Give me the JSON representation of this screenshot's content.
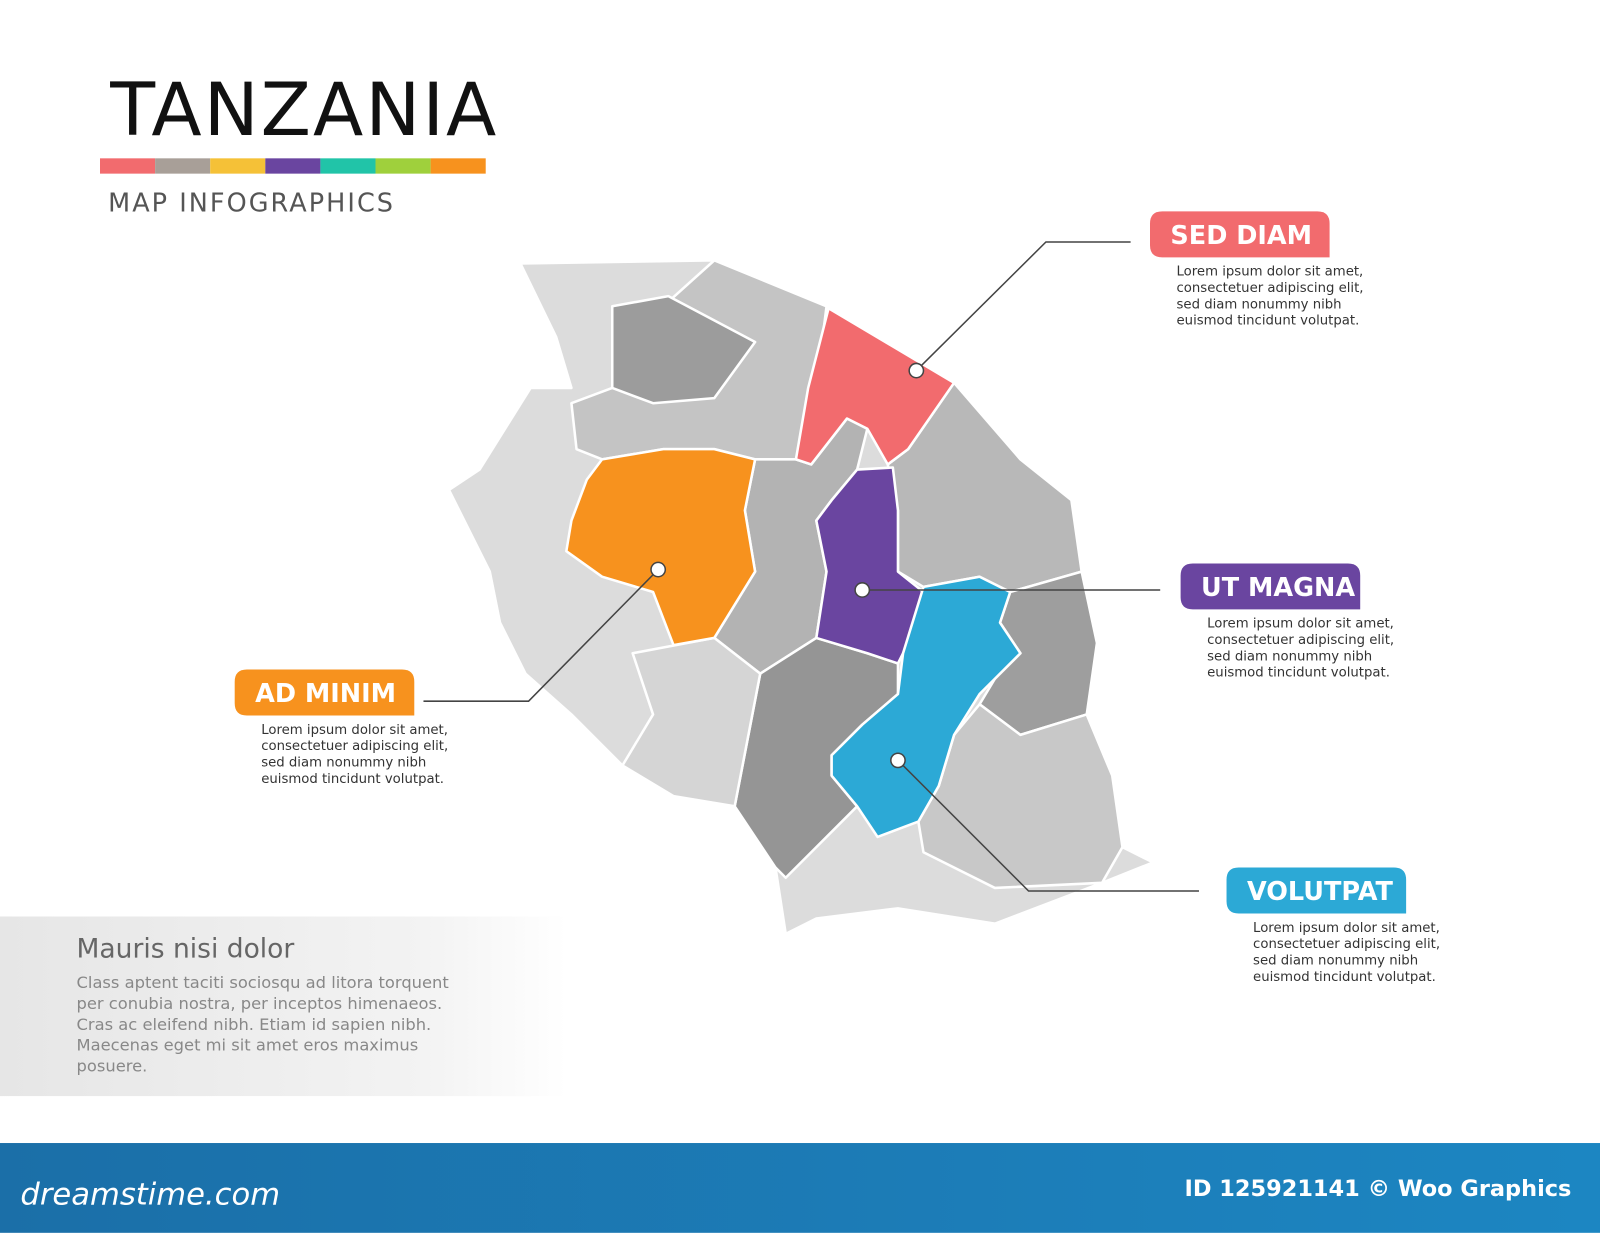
{
  "header": {
    "title": "TANZANIA",
    "subtitle": "MAP INFOGRAPHICS"
  },
  "callouts": [
    {
      "label": "SED DIAM",
      "lines": [
        "Lorem ipsum dolor sit amet,",
        "consectetuer adipiscing elit,",
        "sed diam nonummy nibh",
        "euismod tincidunt volutpat."
      ]
    },
    {
      "label": "UT MAGNA",
      "lines": [
        "Lorem ipsum dolor sit amet,",
        "consectetuer adipiscing elit,",
        "sed diam nonummy nibh",
        "euismod tincidunt volutpat."
      ]
    },
    {
      "label": "AD MINIM",
      "lines": [
        "Lorem ipsum dolor sit amet,",
        "consectetuer adipiscing elit,",
        "sed diam nonummy nibh",
        "euismod tincidunt volutpat."
      ]
    },
    {
      "label": "VOLUTPAT",
      "lines": [
        "Lorem ipsum dolor sit amet,",
        "consectetuer adipiscing elit,",
        "sed diam nonummy nibh",
        "euismod tincidunt volutpat."
      ]
    }
  ],
  "info_box": {
    "title": "Mauris nisi dolor",
    "lines": [
      "Class aptent taciti sociosqu ad litora torquent",
      "per conubia nostra, per inceptos himenaeos.",
      "Cras ac eleifend nibh. Etiam id sapien nibh.",
      "Maecenas eget mi sit amet eros maximus",
      "posuere."
    ]
  },
  "footer": {
    "brand": "dreamstime.com",
    "credit": "ID 125921141 © Woo Graphics"
  }
}
